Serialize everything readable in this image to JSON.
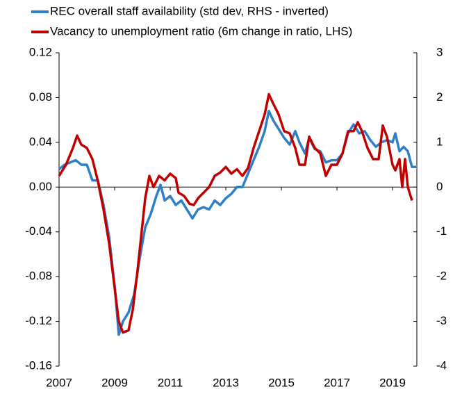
{
  "chart_data": {
    "type": "line",
    "xlim": [
      2007,
      2019.875
    ],
    "xticks": [
      2007,
      2009,
      2011,
      2013,
      2015,
      2017,
      2019
    ],
    "ylim": [
      -0.16,
      0.12
    ],
    "yticks": [
      0.12,
      0.08,
      0.04,
      {
        "value": 0,
        "label": "0.00"
      },
      -0.04,
      -0.08,
      -0.12,
      -0.16
    ],
    "y2lim": [
      -4,
      3
    ],
    "y2ticks": [
      3,
      2,
      1,
      0,
      -1,
      -2,
      -3,
      -4
    ],
    "grid": false,
    "legend": "top",
    "series": [
      {
        "name": "REC overall staff availability (std dev, RHS - inverted)",
        "color": "#2e7fc6",
        "axis": "y2",
        "x": [
          2007.0,
          2007.2,
          2007.4,
          2007.6,
          2007.8,
          2008.0,
          2008.2,
          2008.4,
          2008.6,
          2008.8,
          2009.0,
          2009.15,
          2009.3,
          2009.5,
          2009.7,
          2009.9,
          2010.1,
          2010.3,
          2010.5,
          2010.65,
          2010.8,
          2011.0,
          2011.2,
          2011.4,
          2011.6,
          2011.8,
          2012.0,
          2012.2,
          2012.4,
          2012.6,
          2012.8,
          2013.0,
          2013.2,
          2013.4,
          2013.6,
          2013.8,
          2014.0,
          2014.2,
          2014.4,
          2014.55,
          2014.7,
          2014.9,
          2015.1,
          2015.3,
          2015.5,
          2015.65,
          2015.85,
          2016.0,
          2016.2,
          2016.4,
          2016.6,
          2016.8,
          2017.0,
          2017.2,
          2017.4,
          2017.6,
          2017.8,
          2018.0,
          2018.2,
          2018.4,
          2018.6,
          2018.8,
          2019.0,
          2019.1,
          2019.25,
          2019.4,
          2019.55,
          2019.7,
          2019.85
        ],
        "values": [
          0.4,
          0.5,
          0.55,
          0.6,
          0.5,
          0.5,
          0.15,
          0.15,
          -0.4,
          -1.1,
          -2.2,
          -3.3,
          -3.0,
          -2.8,
          -2.4,
          -1.6,
          -0.9,
          -0.6,
          -0.2,
          0.05,
          -0.3,
          -0.2,
          -0.4,
          -0.3,
          -0.5,
          -0.7,
          -0.5,
          -0.45,
          -0.5,
          -0.3,
          -0.4,
          -0.25,
          -0.15,
          0.0,
          0.0,
          0.3,
          0.6,
          0.9,
          1.25,
          1.7,
          1.5,
          1.3,
          1.1,
          0.95,
          1.25,
          1.0,
          0.75,
          1.1,
          0.85,
          0.8,
          0.55,
          0.6,
          0.6,
          0.75,
          1.2,
          1.4,
          1.2,
          1.25,
          1.05,
          0.9,
          1.0,
          1.05,
          1.0,
          1.2,
          0.8,
          0.9,
          0.8,
          0.45,
          0.45
        ]
      },
      {
        "name": "Vacancy to unemployment ratio (6m change in ratio, LHS)",
        "color": "#c00000",
        "axis": "y",
        "x": [
          2007.0,
          2007.25,
          2007.5,
          2007.65,
          2007.8,
          2008.0,
          2008.2,
          2008.4,
          2008.6,
          2008.8,
          2009.0,
          2009.15,
          2009.3,
          2009.5,
          2009.65,
          2009.8,
          2009.95,
          2010.1,
          2010.25,
          2010.4,
          2010.6,
          2010.8,
          2011.0,
          2011.2,
          2011.3,
          2011.5,
          2011.7,
          2011.85,
          2012.0,
          2012.2,
          2012.4,
          2012.6,
          2012.8,
          2013.0,
          2013.2,
          2013.4,
          2013.6,
          2013.8,
          2014.0,
          2014.2,
          2014.4,
          2014.55,
          2014.7,
          2014.9,
          2015.1,
          2015.3,
          2015.5,
          2015.65,
          2015.85,
          2016.0,
          2016.2,
          2016.4,
          2016.6,
          2016.8,
          2017.0,
          2017.2,
          2017.4,
          2017.6,
          2017.75,
          2017.9,
          2018.1,
          2018.3,
          2018.5,
          2018.65,
          2018.8,
          2019.0,
          2019.1,
          2019.25,
          2019.35,
          2019.45,
          2019.55,
          2019.7
        ],
        "values": [
          0.01,
          0.02,
          0.035,
          0.046,
          0.038,
          0.035,
          0.025,
          0.005,
          -0.02,
          -0.05,
          -0.09,
          -0.12,
          -0.13,
          -0.128,
          -0.11,
          -0.08,
          -0.045,
          -0.01,
          0.01,
          0.0,
          0.01,
          0.006,
          0.012,
          0.008,
          -0.005,
          -0.008,
          -0.015,
          -0.016,
          -0.01,
          -0.005,
          0.0,
          0.01,
          0.013,
          0.018,
          0.012,
          0.016,
          0.01,
          0.017,
          0.035,
          0.05,
          0.065,
          0.083,
          0.075,
          0.065,
          0.05,
          0.048,
          0.035,
          0.02,
          0.02,
          0.045,
          0.035,
          0.03,
          0.01,
          0.02,
          0.02,
          0.03,
          0.05,
          0.05,
          0.058,
          0.05,
          0.035,
          0.025,
          0.025,
          0.055,
          0.045,
          0.02,
          0.015,
          0.025,
          0.0,
          0.025,
          0.0,
          -0.012
        ]
      }
    ]
  }
}
